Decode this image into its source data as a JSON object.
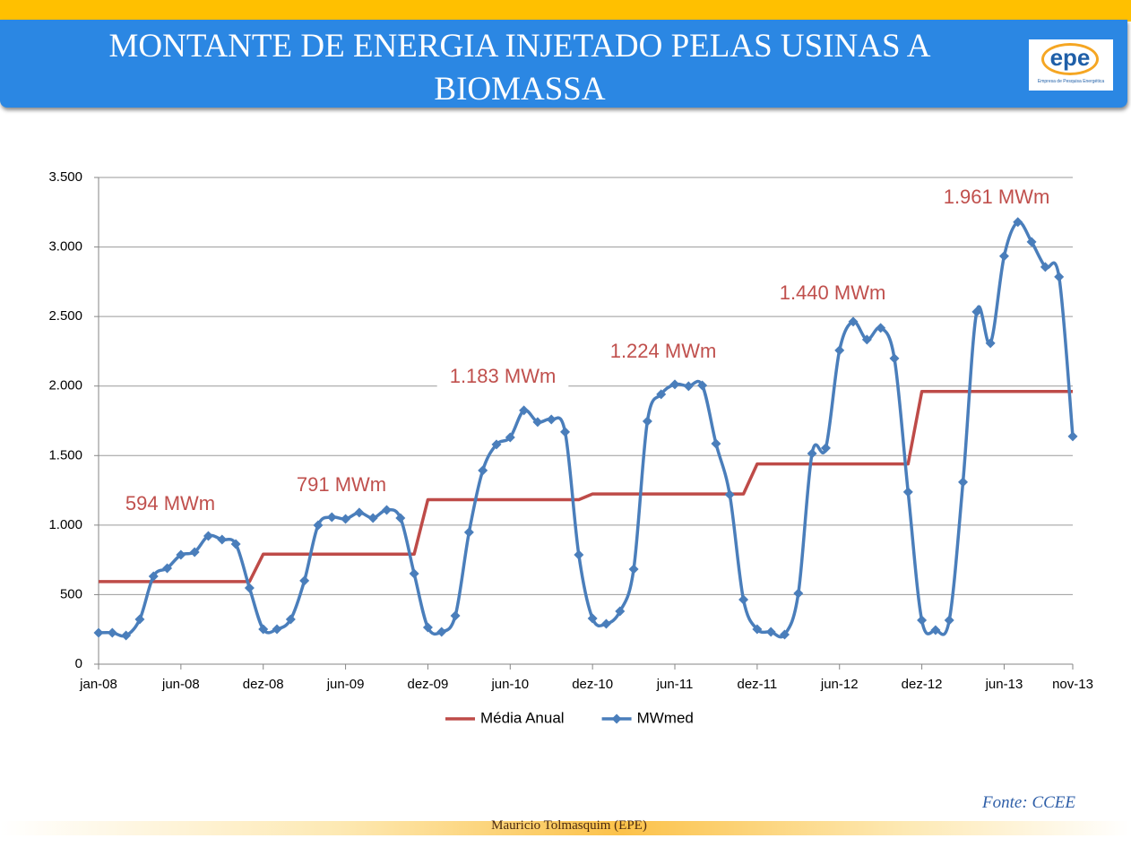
{
  "header": {
    "title": "MONTANTE DE ENERGIA INJETADO PELAS USINAS A BIOMASSA",
    "logo": {
      "name": "epe",
      "caption": "Empresa de Pesquisa Energética"
    }
  },
  "chart_data": {
    "type": "line",
    "categories": [
      "jan-08",
      null,
      null,
      null,
      null,
      null,
      "jun-08",
      null,
      null,
      null,
      null,
      null,
      "dez-08",
      null,
      null,
      null,
      null,
      null,
      "jun-09",
      null,
      null,
      null,
      null,
      null,
      "dez-09",
      null,
      null,
      null,
      null,
      null,
      "jun-10",
      null,
      null,
      null,
      null,
      null,
      "dez-10",
      null,
      null,
      null,
      null,
      null,
      "jun-11",
      null,
      null,
      null,
      null,
      null,
      "dez-11",
      null,
      null,
      null,
      null,
      null,
      "jun-12",
      null,
      null,
      null,
      null,
      null,
      "dez-12",
      null,
      null,
      null,
      null,
      null,
      "jun-13",
      null,
      null,
      null,
      null,
      "nov-13"
    ],
    "series": [
      {
        "name": "Média Anual",
        "color": "#be4b48",
        "marker": "none",
        "smooth": false,
        "values": [
          594,
          594,
          594,
          594,
          594,
          594,
          594,
          594,
          594,
          594,
          594,
          594,
          791,
          791,
          791,
          791,
          791,
          791,
          791,
          791,
          791,
          791,
          791,
          791,
          1183,
          1183,
          1183,
          1183,
          1183,
          1183,
          1183,
          1183,
          1183,
          1183,
          1183,
          1183,
          1224,
          1224,
          1224,
          1224,
          1224,
          1224,
          1224,
          1224,
          1224,
          1224,
          1224,
          1224,
          1440,
          1440,
          1440,
          1440,
          1440,
          1440,
          1440,
          1440,
          1440,
          1440,
          1440,
          1440,
          1961,
          1961,
          1961,
          1961,
          1961,
          1961,
          1961,
          1961,
          1961,
          1961,
          1961,
          1961
        ]
      },
      {
        "name": "MWmed",
        "color": "#4a7ebb",
        "marker": "diamond",
        "smooth": true,
        "values": [
          226,
          226,
          206,
          322,
          632,
          690,
          786,
          806,
          922,
          896,
          864,
          548,
          251,
          251,
          322,
          600,
          999,
          1057,
          1044,
          1090,
          1051,
          1109,
          1051,
          651,
          264,
          232,
          348,
          948,
          1393,
          1580,
          1631,
          1825,
          1741,
          1760,
          1670,
          786,
          329,
          290,
          380,
          683,
          1747,
          1941,
          2012,
          1999,
          2005,
          1586,
          1219,
          464,
          251,
          232,
          213,
          509,
          1515,
          1554,
          2257,
          2463,
          2334,
          2418,
          2199,
          1238,
          316,
          245,
          316,
          1309,
          2534,
          2308,
          2934,
          3179,
          3037,
          2856,
          2785,
          1638
        ]
      }
    ],
    "ylim": [
      0,
      3500
    ],
    "yticks": [
      0,
      500,
      {
        "value": 1000,
        "label": "1.000"
      },
      {
        "value": 1500,
        "label": "1.500"
      },
      {
        "value": 2000,
        "label": "2.000"
      },
      {
        "value": 2500,
        "label": "2.500"
      },
      {
        "value": 3000,
        "label": "3.000"
      },
      {
        "value": 3500,
        "label": "3.500"
      }
    ],
    "grid": true,
    "legend": "bottom",
    "annotations": [
      "594 MWm",
      "791 MWm",
      "1.183 MWm",
      "1.224 MWm",
      "1.440 MWm",
      "1.961 MWm"
    ]
  },
  "footer": {
    "source": "Fonte: CCEE",
    "author": "Mauricio Tolmasquim (EPE)"
  }
}
